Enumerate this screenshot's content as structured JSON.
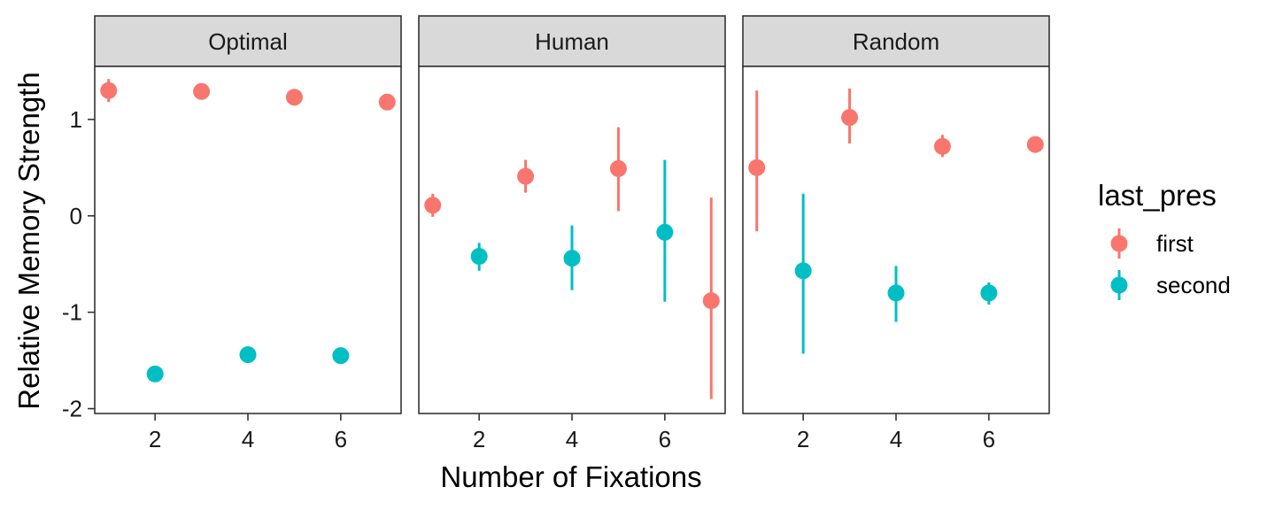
{
  "chart_data": {
    "type": "scatter",
    "xlabel": "Number of Fixations",
    "ylabel": "Relative Memory Strength",
    "xlim": [
      0.7,
      7.3
    ],
    "ylim": [
      -2.05,
      1.55
    ],
    "x_ticks": [
      2,
      4,
      6
    ],
    "y_ticks": [
      1,
      0,
      -1,
      -2
    ],
    "x_tick_labels": [
      "2",
      "4",
      "6"
    ],
    "y_tick_labels": [
      "1",
      "0",
      "-1",
      "-2"
    ],
    "grid": false,
    "legend": {
      "title": "last_pres",
      "position": "right",
      "entries": [
        {
          "name": "first",
          "color": "#F8766D"
        },
        {
          "name": "second",
          "color": "#00BFC4"
        }
      ]
    },
    "facets": [
      {
        "label": "Optimal",
        "series": [
          {
            "name": "first",
            "points": [
              {
                "x": 1,
                "y": 1.3,
                "lo": 1.18,
                "hi": 1.42
              },
              {
                "x": 3,
                "y": 1.29,
                "lo": 1.29,
                "hi": 1.29
              },
              {
                "x": 5,
                "y": 1.23,
                "lo": 1.23,
                "hi": 1.23
              },
              {
                "x": 7,
                "y": 1.18,
                "lo": 1.18,
                "hi": 1.18
              }
            ]
          },
          {
            "name": "second",
            "points": [
              {
                "x": 2,
                "y": -1.64,
                "lo": -1.72,
                "hi": -1.56
              },
              {
                "x": 4,
                "y": -1.44,
                "lo": -1.44,
                "hi": -1.44
              },
              {
                "x": 6,
                "y": -1.45,
                "lo": -1.45,
                "hi": -1.45
              }
            ]
          }
        ]
      },
      {
        "label": "Human",
        "series": [
          {
            "name": "first",
            "points": [
              {
                "x": 1,
                "y": 0.11,
                "lo": -0.01,
                "hi": 0.23
              },
              {
                "x": 3,
                "y": 0.41,
                "lo": 0.24,
                "hi": 0.58
              },
              {
                "x": 5,
                "y": 0.49,
                "lo": 0.05,
                "hi": 0.92
              },
              {
                "x": 7,
                "y": -0.88,
                "lo": -1.9,
                "hi": 0.19
              }
            ]
          },
          {
            "name": "second",
            "points": [
              {
                "x": 2,
                "y": -0.42,
                "lo": -0.57,
                "hi": -0.28
              },
              {
                "x": 4,
                "y": -0.44,
                "lo": -0.77,
                "hi": -0.1
              },
              {
                "x": 6,
                "y": -0.17,
                "lo": -0.89,
                "hi": 0.58
              }
            ]
          }
        ]
      },
      {
        "label": "Random",
        "series": [
          {
            "name": "first",
            "points": [
              {
                "x": 1,
                "y": 0.5,
                "lo": -0.16,
                "hi": 1.3
              },
              {
                "x": 3,
                "y": 1.02,
                "lo": 0.75,
                "hi": 1.32
              },
              {
                "x": 5,
                "y": 0.72,
                "lo": 0.61,
                "hi": 0.84
              },
              {
                "x": 7,
                "y": 0.74,
                "lo": 0.74,
                "hi": 0.74
              }
            ]
          },
          {
            "name": "second",
            "points": [
              {
                "x": 2,
                "y": -0.57,
                "lo": -1.43,
                "hi": 0.23
              },
              {
                "x": 4,
                "y": -0.8,
                "lo": -1.1,
                "hi": -0.52
              },
              {
                "x": 6,
                "y": -0.8,
                "lo": -0.92,
                "hi": -0.69
              }
            ]
          }
        ]
      }
    ]
  }
}
